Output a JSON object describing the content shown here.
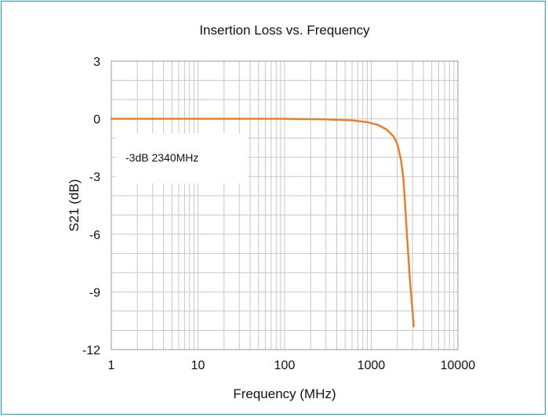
{
  "chart_data": {
    "type": "line",
    "title": "Insertion Loss vs. Frequency",
    "xlabel": "Frequency  (MHz)",
    "ylabel": "S21  (dB)",
    "xscale": "log",
    "xlim": [
      1,
      10000
    ],
    "ylim": [
      -12,
      3
    ],
    "x_ticks": [
      1,
      10,
      100,
      1000,
      10000
    ],
    "x_tick_labels": [
      "1",
      "10",
      "100",
      "1000",
      "10000"
    ],
    "y_ticks": [
      3,
      0,
      -3,
      -6,
      -9,
      -12
    ],
    "y_tick_labels": [
      "3",
      "0",
      "-3",
      "-6",
      "-9",
      "-12"
    ],
    "grid": true,
    "annotation": "-3dB  2340MHz",
    "series": [
      {
        "color": "#f07a21",
        "x": [
          1,
          10,
          100,
          300,
          600,
          900,
          1200,
          1500,
          1800,
          2000,
          2200,
          2340,
          2450,
          2600,
          2800,
          3000,
          3100
        ],
        "y": [
          0,
          0,
          0,
          -0.03,
          -0.08,
          -0.17,
          -0.32,
          -0.55,
          -0.9,
          -1.3,
          -2.1,
          -3.0,
          -4.3,
          -6.2,
          -8.4,
          -10.0,
          -10.8
        ]
      }
    ]
  }
}
